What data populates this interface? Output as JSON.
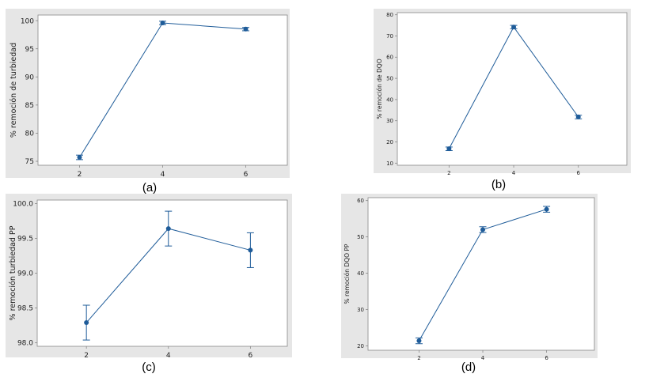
{
  "colors": {
    "line": "#1f5c99",
    "marker": "#1f5c99",
    "panel_bg": "#e6e6e6",
    "plot_bg": "#ffffff",
    "axis": "#888888",
    "text": "#222222"
  },
  "chart_data": [
    {
      "id": "a",
      "type": "line",
      "caption": "(a)",
      "ylabel": "% remoción de turbiedad",
      "x": [
        2,
        4,
        6
      ],
      "x_ticks": [
        "2",
        "4",
        "6"
      ],
      "values": [
        75.7,
        99.6,
        98.5
      ],
      "err_low": [
        75.3,
        99.3,
        98.2
      ],
      "err_high": [
        76.1,
        99.9,
        98.8
      ],
      "ylim": [
        74.3,
        101.0
      ],
      "y_ticks": [
        75,
        80,
        85,
        90,
        95,
        100
      ],
      "y_tick_labels": [
        "75",
        "80",
        "85",
        "90",
        "95",
        "100"
      ]
    },
    {
      "id": "b",
      "type": "line",
      "caption": "(b)",
      "ylabel": "% remoción de DQO",
      "x": [
        2,
        4,
        6
      ],
      "x_ticks": [
        "2",
        "4",
        "6"
      ],
      "values": [
        16.8,
        74.2,
        31.8
      ],
      "err_low": [
        15.9,
        73.4,
        30.9
      ],
      "err_high": [
        17.6,
        75.0,
        32.6
      ],
      "ylim": [
        9.0,
        81.0
      ],
      "y_ticks": [
        10,
        20,
        30,
        40,
        50,
        60,
        70,
        80
      ],
      "y_tick_labels": [
        "10",
        "20",
        "30",
        "40",
        "50",
        "60",
        "70",
        "80"
      ]
    },
    {
      "id": "c",
      "type": "line",
      "caption": "(c)",
      "ylabel": "% remoción turbiedad PP",
      "x": [
        2,
        4,
        6
      ],
      "x_ticks": [
        "2",
        "4",
        "6"
      ],
      "values": [
        98.29,
        99.64,
        99.33
      ],
      "err_low": [
        98.04,
        99.39,
        99.08
      ],
      "err_high": [
        98.54,
        99.89,
        99.58
      ],
      "ylim": [
        97.95,
        100.05
      ],
      "y_ticks": [
        98.0,
        98.5,
        99.0,
        99.5,
        100.0
      ],
      "y_tick_labels": [
        "98.0",
        "98.5",
        "99.0",
        "99.5",
        "100.0"
      ]
    },
    {
      "id": "d",
      "type": "line",
      "caption": "(d)",
      "ylabel": "% remoción DQO PP",
      "x": [
        2,
        4,
        6
      ],
      "x_ticks": [
        "2",
        "4",
        "6"
      ],
      "values": [
        21.4,
        52.0,
        57.6
      ],
      "err_low": [
        20.6,
        51.2,
        56.8
      ],
      "err_high": [
        22.2,
        52.8,
        58.4
      ],
      "ylim": [
        18.8,
        60.8
      ],
      "y_ticks": [
        20,
        30,
        40,
        50,
        60
      ],
      "y_tick_labels": [
        "20",
        "30",
        "40",
        "50",
        "60"
      ]
    }
  ]
}
